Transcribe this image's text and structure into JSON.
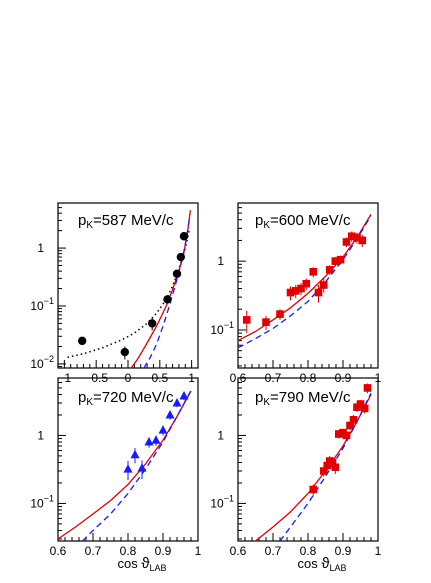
{
  "colors": {
    "red": "#e00000",
    "blue": "#1a1aff",
    "black": "#000000"
  },
  "xaxis_title": {
    "prefix": "cos ",
    "symbol": "ϑ",
    "subscript": "LAB"
  },
  "chart_data": [
    {
      "type": "scatter",
      "title": "p_K=587 MeV/c",
      "title_main": "p",
      "title_sub": "K",
      "title_rest": "=587 MeV/c",
      "xlim": [
        -1.1,
        1.1
      ],
      "ylim": [
        0.0085,
        6
      ],
      "yscale": "log",
      "xticks": [
        -1,
        -0.5,
        0,
        0.5,
        1
      ],
      "xticklabels": [
        "−1",
        "−0.5",
        "0",
        "0.5",
        "1"
      ],
      "yticks": [
        0.01,
        0.1,
        1
      ],
      "yticklabels": [
        [
          "10",
          "−2"
        ],
        [
          "10",
          "−1"
        ],
        [
          "1",
          ""
        ]
      ],
      "marker": "circle",
      "marker_color": "#000000",
      "points": [
        {
          "x": -0.72,
          "y": 0.025,
          "err": 0
        },
        {
          "x": -0.05,
          "y": 0.016,
          "err": 0.004
        },
        {
          "x": 0.38,
          "y": 0.05,
          "err": 0.012
        },
        {
          "x": 0.62,
          "y": 0.13,
          "err": 0
        },
        {
          "x": 0.77,
          "y": 0.36,
          "err": 0
        },
        {
          "x": 0.83,
          "y": 0.7,
          "err": 0
        },
        {
          "x": 0.88,
          "y": 1.6,
          "err": 0
        }
      ],
      "series": [
        {
          "style": "dotted",
          "color": "#000000",
          "x": [
            -0.95,
            -0.7,
            -0.4,
            -0.1,
            0.1,
            0.3,
            0.45,
            0.6,
            0.7,
            0.8,
            0.9,
            0.97
          ],
          "y": [
            0.013,
            0.015,
            0.019,
            0.026,
            0.034,
            0.05,
            0.075,
            0.13,
            0.22,
            0.43,
            1.0,
            2.2
          ]
        },
        {
          "style": "solid",
          "color": "#e00000",
          "x": [
            0.05,
            0.15,
            0.3,
            0.45,
            0.6,
            0.7,
            0.8,
            0.88,
            0.94,
            0.98
          ],
          "y": [
            0.0085,
            0.012,
            0.023,
            0.045,
            0.1,
            0.19,
            0.4,
            0.85,
            2.0,
            4.5
          ]
        },
        {
          "style": "dashed",
          "color": "#1a1aff",
          "x": [
            0.25,
            0.35,
            0.45,
            0.55,
            0.65,
            0.75,
            0.85,
            0.92,
            0.97
          ],
          "y": [
            0.0085,
            0.013,
            0.022,
            0.045,
            0.1,
            0.24,
            0.62,
            1.5,
            3.5
          ]
        }
      ]
    },
    {
      "type": "scatter",
      "title": "p_K=600 MeV/c",
      "title_main": "p",
      "title_sub": "K",
      "title_rest": "=600 MeV/c",
      "xlim": [
        0.6,
        1.0
      ],
      "ylim": [
        0.028,
        7
      ],
      "yscale": "log",
      "xticks": [
        0.6,
        0.7,
        0.8,
        0.9,
        1.0
      ],
      "xticklabels": [
        "0.6",
        "0.7",
        "0.8",
        "0.9",
        "1"
      ],
      "yticks": [
        0.1,
        1
      ],
      "yticklabels": [
        [
          "10",
          "−1"
        ],
        [
          "1",
          ""
        ]
      ],
      "marker": "square",
      "marker_color": "#e00000",
      "points": [
        {
          "x": 0.625,
          "y": 0.14,
          "err": 0.05
        },
        {
          "x": 0.68,
          "y": 0.13,
          "err": 0.03
        },
        {
          "x": 0.72,
          "y": 0.17,
          "err": 0.03
        },
        {
          "x": 0.75,
          "y": 0.35,
          "err": 0.08
        },
        {
          "x": 0.765,
          "y": 0.37,
          "err": 0.08
        },
        {
          "x": 0.78,
          "y": 0.4,
          "err": 0.08
        },
        {
          "x": 0.795,
          "y": 0.47,
          "err": 0.09
        },
        {
          "x": 0.815,
          "y": 0.7,
          "err": 0.12
        },
        {
          "x": 0.83,
          "y": 0.35,
          "err": 0.1
        },
        {
          "x": 0.845,
          "y": 0.45,
          "err": 0.1
        },
        {
          "x": 0.862,
          "y": 0.75,
          "err": 0.12
        },
        {
          "x": 0.878,
          "y": 1.0,
          "err": 0.15
        },
        {
          "x": 0.893,
          "y": 1.05,
          "err": 0.15
        },
        {
          "x": 0.91,
          "y": 1.9,
          "err": 0.3
        },
        {
          "x": 0.925,
          "y": 2.3,
          "err": 0.4
        },
        {
          "x": 0.94,
          "y": 2.2,
          "err": 0.4
        },
        {
          "x": 0.955,
          "y": 2.0,
          "err": 0.4
        }
      ],
      "series": [
        {
          "style": "solid",
          "color": "#e00000",
          "x": [
            0.6,
            0.65,
            0.7,
            0.75,
            0.8,
            0.85,
            0.9,
            0.94,
            0.98
          ],
          "y": [
            0.07,
            0.095,
            0.14,
            0.21,
            0.34,
            0.6,
            1.15,
            2.2,
            4.8
          ]
        },
        {
          "style": "dashed",
          "color": "#1a1aff",
          "x": [
            0.6,
            0.65,
            0.7,
            0.75,
            0.8,
            0.85,
            0.9,
            0.94,
            0.98
          ],
          "y": [
            0.055,
            0.075,
            0.105,
            0.16,
            0.26,
            0.5,
            1.05,
            2.1,
            4.6
          ]
        }
      ]
    },
    {
      "type": "scatter",
      "title": "p_K=720 MeV/c",
      "title_main": "p",
      "title_sub": "K",
      "title_rest": "=720 MeV/c",
      "xlim": [
        0.6,
        1.0
      ],
      "ylim": [
        0.028,
        7
      ],
      "yscale": "log",
      "xticks": [
        0.6,
        0.7,
        0.8,
        0.9,
        1.0
      ],
      "xticklabels": [
        "0.6",
        "0.7",
        "0.8",
        "0.9",
        "1"
      ],
      "yticks": [
        0.1,
        1
      ],
      "yticklabels": [
        [
          "10",
          "−1"
        ],
        [
          "1",
          ""
        ]
      ],
      "marker": "triangle",
      "marker_color": "#1a1aff",
      "points": [
        {
          "x": 0.8,
          "y": 0.32,
          "err": 0.1
        },
        {
          "x": 0.82,
          "y": 0.52,
          "err": 0.13
        },
        {
          "x": 0.84,
          "y": 0.33,
          "err": 0.1
        },
        {
          "x": 0.86,
          "y": 0.8,
          "err": 0.14
        },
        {
          "x": 0.88,
          "y": 0.85,
          "err": 0.15
        },
        {
          "x": 0.9,
          "y": 1.2,
          "err": 0.2
        },
        {
          "x": 0.92,
          "y": 2.0,
          "err": 0.3
        },
        {
          "x": 0.94,
          "y": 3.0,
          "err": 0.4
        },
        {
          "x": 0.96,
          "y": 3.8,
          "err": 0.5
        }
      ],
      "series": [
        {
          "style": "solid",
          "color": "#e00000",
          "x": [
            0.6,
            0.65,
            0.7,
            0.75,
            0.8,
            0.85,
            0.9,
            0.94,
            0.98
          ],
          "y": [
            0.03,
            0.045,
            0.07,
            0.11,
            0.19,
            0.38,
            0.85,
            1.9,
            4.5
          ]
        },
        {
          "style": "dashed",
          "color": "#1a1aff",
          "x": [
            0.67,
            0.7,
            0.75,
            0.8,
            0.85,
            0.9,
            0.94,
            0.98
          ],
          "y": [
            0.028,
            0.04,
            0.07,
            0.14,
            0.32,
            0.8,
            1.9,
            4.6
          ]
        }
      ]
    },
    {
      "type": "scatter",
      "title": "p_K=790 MeV/c",
      "title_main": "p",
      "title_sub": "K",
      "title_rest": "=790 MeV/c",
      "xlim": [
        0.6,
        1.0
      ],
      "ylim": [
        0.028,
        7
      ],
      "yscale": "log",
      "xticks": [
        0.6,
        0.7,
        0.8,
        0.9,
        1.0
      ],
      "xticklabels": [
        "0.6",
        "0.7",
        "0.8",
        "0.9",
        "1"
      ],
      "yticks": [
        0.1,
        1
      ],
      "yticklabels": [
        [
          "10",
          "−1"
        ],
        [
          "1",
          ""
        ]
      ],
      "marker": "square",
      "marker_color": "#e00000",
      "points": [
        {
          "x": 0.815,
          "y": 0.16,
          "err": 0.03
        },
        {
          "x": 0.845,
          "y": 0.3,
          "err": 0.05
        },
        {
          "x": 0.855,
          "y": 0.36,
          "err": 0.06
        },
        {
          "x": 0.862,
          "y": 0.42,
          "err": 0.08
        },
        {
          "x": 0.87,
          "y": 0.4,
          "err": 0.08
        },
        {
          "x": 0.878,
          "y": 0.34,
          "err": 0.07
        },
        {
          "x": 0.888,
          "y": 1.05,
          "err": 0.15
        },
        {
          "x": 0.9,
          "y": 1.1,
          "err": 0.15
        },
        {
          "x": 0.91,
          "y": 1.0,
          "err": 0.15
        },
        {
          "x": 0.92,
          "y": 1.4,
          "err": 0.2
        },
        {
          "x": 0.93,
          "y": 1.7,
          "err": 0.3
        },
        {
          "x": 0.94,
          "y": 2.6,
          "err": 0.4
        },
        {
          "x": 0.95,
          "y": 2.9,
          "err": 0.4
        },
        {
          "x": 0.962,
          "y": 2.5,
          "err": 0.4
        },
        {
          "x": 0.97,
          "y": 5.0,
          "err": 0.8
        }
      ],
      "series": [
        {
          "style": "solid",
          "color": "#e00000",
          "x": [
            0.65,
            0.7,
            0.75,
            0.8,
            0.85,
            0.9,
            0.94,
            0.98
          ],
          "y": [
            0.028,
            0.045,
            0.075,
            0.14,
            0.3,
            0.7,
            1.6,
            4.0
          ]
        },
        {
          "style": "dashed",
          "color": "#1a1aff",
          "x": [
            0.72,
            0.75,
            0.8,
            0.85,
            0.9,
            0.94,
            0.98
          ],
          "y": [
            0.028,
            0.045,
            0.1,
            0.25,
            0.65,
            1.6,
            4.2
          ]
        }
      ]
    }
  ]
}
